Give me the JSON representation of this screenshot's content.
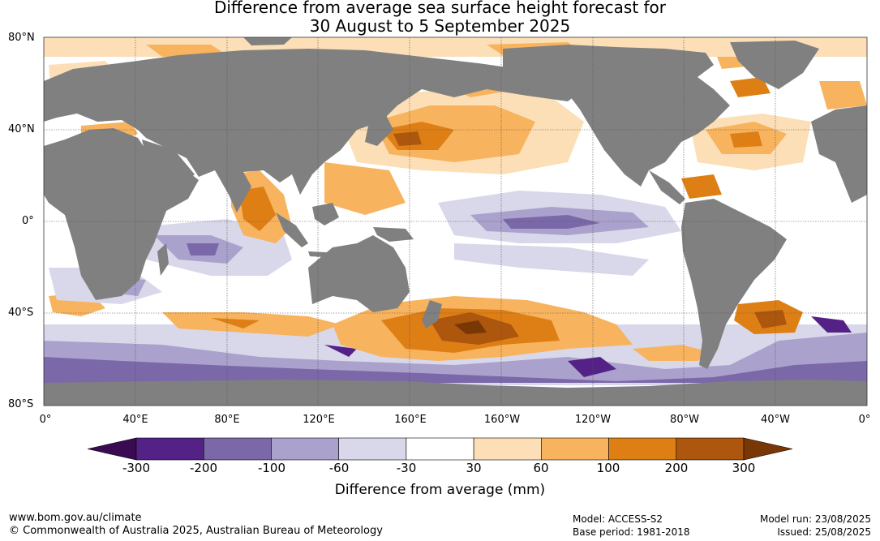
{
  "title_line1": "Difference from average sea surface height forecast for",
  "title_line2": "30 August to 5 September 2025",
  "lat_labels": [
    "80°N",
    "40°N",
    "0°",
    "40°S",
    "80°S"
  ],
  "lon_labels": [
    "0°",
    "40°E",
    "80°E",
    "120°E",
    "160°E",
    "160°W",
    "120°W",
    "80°W",
    "40°W",
    "0°"
  ],
  "colorbar": {
    "title": "Difference from average (mm)",
    "tick_labels": [
      "-300",
      "-200",
      "-100",
      "-60",
      "-30",
      "30",
      "60",
      "100",
      "200",
      "300"
    ],
    "colors": [
      "#3a0b52",
      "#542287",
      "#7b68a8",
      "#aaa2cc",
      "#d8d8ea",
      "#ffffff",
      "#fcdfb6",
      "#f8b35e",
      "#de7f16",
      "#ad560d",
      "#7a3706"
    ]
  },
  "land_color": "#808080",
  "footer": {
    "url": "www.bom.gov.au/climate",
    "copyright": "© Commonwealth of Australia 2025, Australian Bureau of Meteorology",
    "model": "Model: ACCESS-S2",
    "base_period": "Base period: 1981-2018",
    "model_run": "Model run: 23/08/2025",
    "issued": "Issued: 25/08/2025"
  }
}
